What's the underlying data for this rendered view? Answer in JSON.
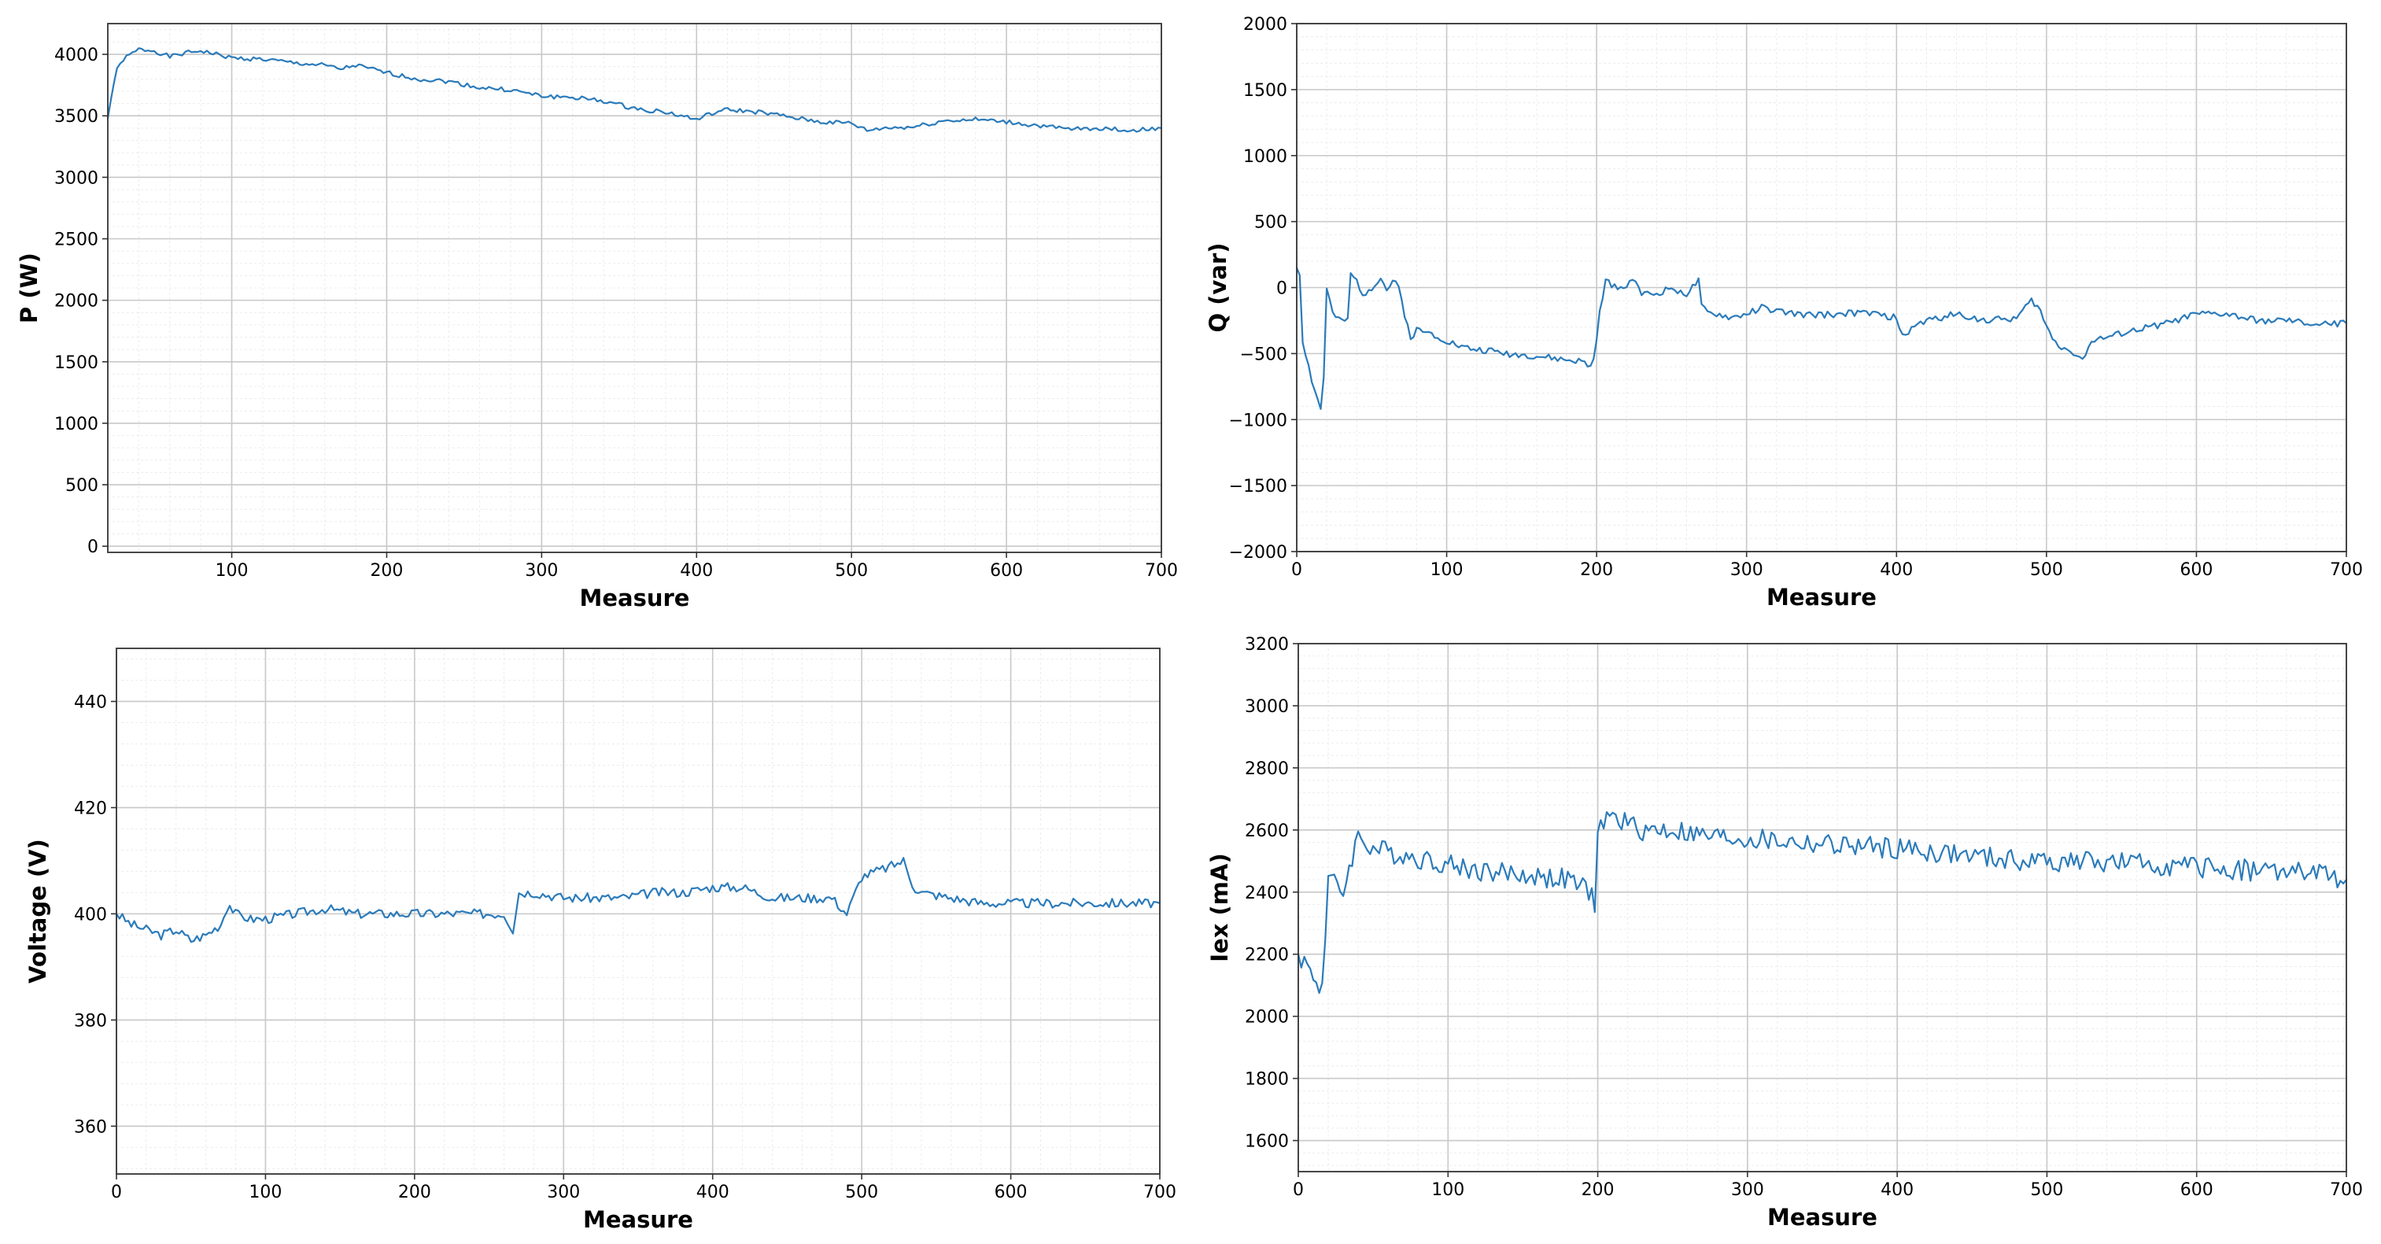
{
  "colors": {
    "series": "#2b7bba",
    "grid_major": "#c8c8c8",
    "grid_minor": "#ececec",
    "frame": "#333333"
  },
  "chart_data": [
    {
      "type": "line",
      "id": "p",
      "xlabel": "Measure",
      "ylabel": "P (W)",
      "xlim": [
        20,
        700
      ],
      "ylim": [
        -50,
        4250
      ],
      "xticks": [
        100,
        200,
        300,
        400,
        500,
        600,
        700
      ],
      "yticks": [
        0,
        500,
        1000,
        1500,
        2000,
        2500,
        3000,
        3500,
        4000
      ],
      "grid": true,
      "series": [
        {
          "color": "#2b7bba",
          "noise": 18,
          "seed": 1,
          "x": [
            20,
            25,
            30,
            40,
            50,
            60,
            70,
            80,
            100,
            120,
            140,
            160,
            170,
            180,
            200,
            220,
            240,
            260,
            280,
            300,
            320,
            340,
            360,
            380,
            400,
            410,
            420,
            440,
            460,
            480,
            500,
            510,
            520,
            540,
            560,
            580,
            600,
            620,
            640,
            660,
            680,
            690,
            700
          ],
          "y": [
            3480,
            3850,
            3960,
            4040,
            4030,
            3980,
            4010,
            4030,
            3970,
            3960,
            3930,
            3910,
            3880,
            3910,
            3850,
            3800,
            3780,
            3730,
            3710,
            3660,
            3650,
            3620,
            3560,
            3530,
            3470,
            3520,
            3550,
            3530,
            3490,
            3450,
            3440,
            3380,
            3400,
            3410,
            3460,
            3470,
            3450,
            3420,
            3390,
            3400,
            3380,
            3390,
            3400
          ]
        }
      ]
    },
    {
      "type": "line",
      "id": "q",
      "xlabel": "Measure",
      "ylabel": "Q (var)",
      "xlim": [
        0,
        700
      ],
      "ylim": [
        -2000,
        2000
      ],
      "xticks": [
        0,
        100,
        200,
        300,
        400,
        500,
        600,
        700
      ],
      "yticks": [
        -2000,
        -1500,
        -1000,
        -500,
        0,
        500,
        1000,
        1500,
        2000
      ],
      "grid": true,
      "series": [
        {
          "color": "#2b7bba",
          "noise": 25,
          "seed": 2,
          "x": [
            0,
            2,
            4,
            6,
            10,
            14,
            17,
            19,
            20,
            24,
            28,
            34,
            36,
            40,
            44,
            50,
            56,
            60,
            64,
            68,
            72,
            76,
            80,
            90,
            100,
            110,
            120,
            130,
            140,
            160,
            180,
            190,
            196,
            198,
            202,
            206,
            210,
            220,
            225,
            230,
            240,
            250,
            260,
            268,
            270,
            275,
            280,
            290,
            300,
            310,
            320,
            340,
            360,
            380,
            390,
            400,
            405,
            410,
            420,
            440,
            460,
            480,
            490,
            495,
            500,
            505,
            510,
            520,
            525,
            530,
            540,
            560,
            580,
            600,
            620,
            640,
            660,
            680,
            700
          ],
          "y": [
            150,
            100,
            -400,
            -500,
            -700,
            -850,
            -960,
            -400,
            0,
            -200,
            -250,
            -250,
            100,
            50,
            -50,
            0,
            80,
            -20,
            50,
            0,
            -200,
            -380,
            -320,
            -350,
            -400,
            -450,
            -470,
            -480,
            -500,
            -520,
            -550,
            -560,
            -600,
            -550,
            -200,
            50,
            20,
            0,
            100,
            -50,
            -50,
            0,
            -50,
            50,
            -150,
            -200,
            -200,
            -230,
            -200,
            -150,
            -180,
            -210,
            -200,
            -190,
            -210,
            -230,
            -400,
            -300,
            -250,
            -200,
            -250,
            -230,
            -100,
            -150,
            -300,
            -400,
            -450,
            -500,
            -550,
            -400,
            -380,
            -320,
            -270,
            -200,
            -200,
            -250,
            -250,
            -280,
            -270
          ]
        }
      ]
    },
    {
      "type": "line",
      "id": "voltage",
      "xlabel": "Measure",
      "ylabel": "Voltage (V)",
      "xlim": [
        0,
        700
      ],
      "ylim": [
        351,
        450
      ],
      "xticks": [
        0,
        100,
        200,
        300,
        400,
        500,
        600,
        700
      ],
      "yticks": [
        360,
        380,
        400,
        420,
        440
      ],
      "grid": true,
      "series": [
        {
          "color": "#2b7bba",
          "noise": 0.9,
          "seed": 3,
          "x": [
            0,
            10,
            20,
            30,
            40,
            50,
            60,
            70,
            75,
            80,
            90,
            100,
            120,
            140,
            160,
            180,
            200,
            220,
            240,
            260,
            266,
            270,
            280,
            300,
            320,
            340,
            360,
            380,
            400,
            420,
            440,
            460,
            480,
            490,
            500,
            510,
            520,
            528,
            535,
            540,
            560,
            580,
            600,
            620,
            640,
            660,
            680,
            700
          ],
          "y": [
            400,
            398,
            397,
            396,
            397,
            395,
            396,
            398,
            402,
            400,
            399,
            399,
            400,
            401,
            400,
            400,
            400,
            400,
            400,
            400,
            397,
            404,
            404,
            403,
            403,
            403,
            404,
            404,
            405,
            405,
            403,
            403,
            403,
            400,
            407,
            408,
            409,
            410,
            405,
            404,
            403,
            402,
            402,
            402,
            402,
            402,
            402,
            402
          ]
        }
      ]
    },
    {
      "type": "line",
      "id": "iex",
      "xlabel": "Measure",
      "ylabel": "Iex (mA)",
      "xlim": [
        0,
        700
      ],
      "ylim": [
        1500,
        3200
      ],
      "xticks": [
        0,
        100,
        200,
        300,
        400,
        500,
        600,
        700
      ],
      "yticks": [
        1600,
        1800,
        2000,
        2200,
        2400,
        2600,
        2800,
        3000,
        3200
      ],
      "grid": true,
      "series": [
        {
          "color": "#2b7bba",
          "noise": 35,
          "seed": 4,
          "x": [
            0,
            5,
            10,
            14,
            17,
            20,
            25,
            30,
            35,
            40,
            45,
            50,
            60,
            80,
            100,
            120,
            140,
            160,
            180,
            195,
            198,
            200,
            205,
            210,
            220,
            230,
            250,
            270,
            300,
            330,
            360,
            400,
            440,
            480,
            520,
            560,
            600,
            640,
            680,
            700
          ],
          "y": [
            2200,
            2170,
            2130,
            2090,
            2150,
            2450,
            2420,
            2400,
            2500,
            2580,
            2560,
            2540,
            2530,
            2510,
            2490,
            2470,
            2460,
            2450,
            2440,
            2400,
            2370,
            2580,
            2640,
            2640,
            2620,
            2600,
            2600,
            2580,
            2570,
            2560,
            2550,
            2540,
            2520,
            2500,
            2500,
            2490,
            2480,
            2470,
            2460,
            2440
          ]
        }
      ]
    }
  ]
}
